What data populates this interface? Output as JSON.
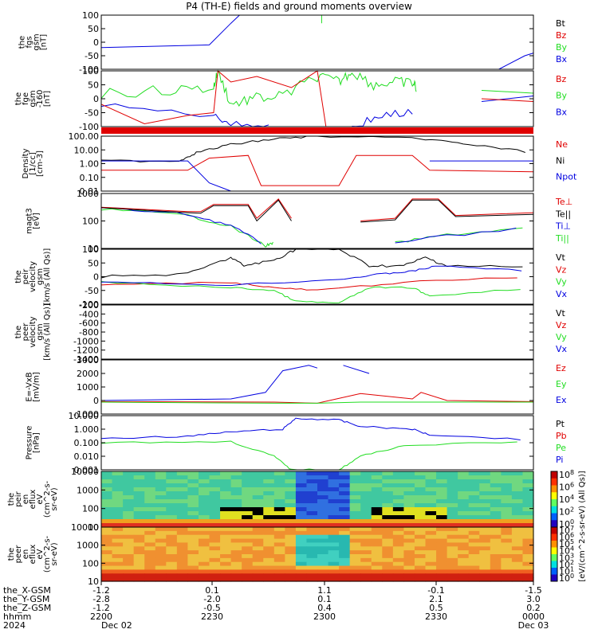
{
  "page": {
    "title": "P4 (TH-E) fields and ground moments overview"
  },
  "colors": {
    "black": "#000000",
    "red": "#e00000",
    "green": "#22dd22",
    "blue": "#0000e0"
  },
  "chart_data": {
    "type": "line",
    "panels": [
      {
        "id": "fgs",
        "ylabel": [
          "the",
          "fgs",
          "gsm",
          "[nT]"
        ],
        "ylim": [
          -100,
          100
        ],
        "ticks": [
          "100",
          "50",
          "0",
          "-50",
          "-100"
        ],
        "legend": [
          {
            "name": "Bt",
            "color": "black"
          },
          {
            "name": "Bz",
            "color": "red"
          },
          {
            "name": "By",
            "color": "green"
          },
          {
            "name": "Bx",
            "color": "blue"
          }
        ]
      },
      {
        "id": "fge",
        "ylabel": [
          "the",
          "fge",
          "gsm",
          "-160",
          "[nT]"
        ],
        "ylim": [
          -125,
          125
        ],
        "ticks": [
          "100",
          "50",
          "0",
          "-50",
          "-100"
        ],
        "legend": [
          {
            "name": "Bz",
            "color": "red"
          },
          {
            "name": "By",
            "color": "green"
          },
          {
            "name": "Bx",
            "color": "blue"
          }
        ]
      },
      {
        "id": "density",
        "ylabel": [
          "Density",
          "[1/cc]",
          "[cm-3]"
        ],
        "scale": "log",
        "ticks": [
          "100.00",
          "10.00",
          "1.00",
          "0.10",
          "0.01"
        ],
        "legend": [
          {
            "name": "Ne",
            "color": "red"
          },
          {
            "name": "Ni",
            "color": "black"
          },
          {
            "name": "Npot",
            "color": "blue"
          }
        ]
      },
      {
        "id": "temp",
        "ylabel": [
          "magt3",
          "[eV]"
        ],
        "scale": "log",
        "ticks": [
          "1000",
          "100",
          "10"
        ],
        "legend": [
          {
            "name": "Te⊥",
            "color": "red"
          },
          {
            "name": "Te||",
            "color": "black"
          },
          {
            "name": "Ti⊥",
            "color": "blue"
          },
          {
            "name": "Ti||",
            "color": "green"
          }
        ]
      },
      {
        "id": "vel_peir",
        "ylabel": [
          "the",
          "peir",
          "velocity",
          "gsm",
          "[km/s (All Qs)]"
        ],
        "ylim": [
          -100,
          125
        ],
        "ticks": [
          "100",
          "50",
          "0",
          "-50",
          "-100"
        ],
        "legend": [
          {
            "name": "Vt",
            "color": "black"
          },
          {
            "name": "Vz",
            "color": "red"
          },
          {
            "name": "Vy",
            "color": "green"
          },
          {
            "name": "Vx",
            "color": "blue"
          }
        ]
      },
      {
        "id": "vel_peer",
        "ylabel": [
          "the",
          "peer",
          "velocity",
          "gsm",
          "[km/s (All Qs)]"
        ],
        "ylim": [
          -1400,
          -200
        ],
        "ticks": [
          "-200",
          "-400",
          "-600",
          "-800",
          "-1000",
          "-1200",
          "-1400"
        ],
        "legend": [
          {
            "name": "Vt",
            "color": "black"
          },
          {
            "name": "Vz",
            "color": "red"
          },
          {
            "name": "Vy",
            "color": "green"
          },
          {
            "name": "Vx",
            "color": "blue"
          }
        ]
      },
      {
        "id": "efield",
        "ylabel": [
          "E=-VxB",
          "[mV/m]"
        ],
        "ylim": [
          -1000,
          3000
        ],
        "ticks": [
          "3000",
          "2000",
          "1000",
          "0",
          "-1000"
        ],
        "legend": [
          {
            "name": "Ez",
            "color": "red"
          },
          {
            "name": "Ey",
            "color": "green"
          },
          {
            "name": "Ex",
            "color": "blue"
          }
        ]
      },
      {
        "id": "pressure",
        "ylabel": [
          "Pressure",
          "[nPa]"
        ],
        "scale": "log",
        "ticks": [
          "10.000",
          "1.000",
          "0.100",
          "0.010",
          "0.001"
        ],
        "legend": [
          {
            "name": "Pt",
            "color": "black"
          },
          {
            "name": "Pb",
            "color": "red"
          },
          {
            "name": "Pe",
            "color": "green"
          },
          {
            "name": "Pi",
            "color": "blue"
          }
        ]
      },
      {
        "id": "peir_spec",
        "ylabel": [
          "the",
          "peir",
          "en",
          "eflux",
          "eV",
          "(cm^2-s-",
          "sr-eV)"
        ],
        "scale": "log",
        "ticks": [
          "10000",
          "1000",
          "100",
          "10"
        ]
      },
      {
        "id": "peer_spec",
        "ylabel": [
          "the",
          "peer",
          "en",
          "eflux",
          "eV",
          "(cm^2-s-",
          "sr-eV)"
        ],
        "scale": "log",
        "ticks": [
          "10000",
          "1000",
          "100",
          "10"
        ]
      }
    ],
    "colorbar": {
      "label": "[eV/(cm^2-s-sr-eV) (All Qs)]",
      "ticks_top": [
        "10^8",
        "10^6",
        "10^4",
        "10^2",
        "10^0"
      ],
      "ticks_bottom": [
        "10^7",
        "10^6",
        "10^5",
        "10^4",
        "10^3",
        "10^2",
        "10^1",
        "10^0"
      ]
    },
    "xaxis": {
      "row_labels": [
        "the_X-GSM",
        "the_Y-GSM",
        "the_Z-GSM",
        "hhmm",
        "2024"
      ],
      "columns": [
        {
          "vals": [
            "-1.2",
            "-2.8",
            "-1.2",
            "2200",
            "Dec 02"
          ]
        },
        {
          "vals": [
            "0.1",
            "-2.0",
            "-0.5",
            "2230",
            ""
          ]
        },
        {
          "vals": [
            "1.1",
            "0.1",
            "0.4",
            "2300",
            ""
          ]
        },
        {
          "vals": [
            "-0.1",
            "2.1",
            "0.5",
            "2330",
            ""
          ]
        },
        {
          "vals": [
            "-1.5",
            "3.0",
            "0.2",
            "0000",
            "Dec 03"
          ]
        }
      ]
    }
  }
}
